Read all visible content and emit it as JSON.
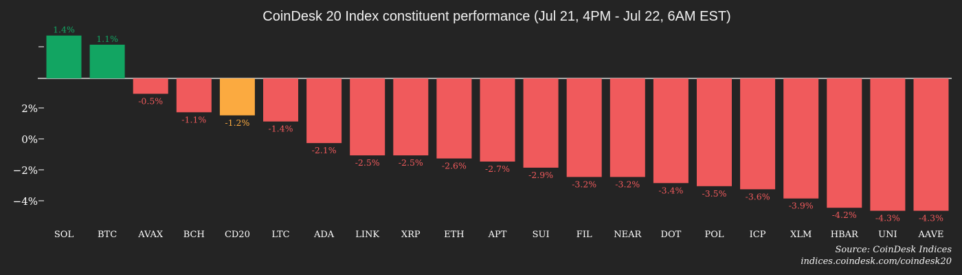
{
  "colors": {
    "background": "#242424",
    "positive": "#12a562",
    "negative": "#f05a5c",
    "index": "#fbaa40",
    "text": "#ffffff"
  },
  "source": {
    "line1": "Source: CoinDesk Indices",
    "line2": "indices.coindesk.com/coindesk20"
  },
  "chart_data": {
    "type": "bar",
    "title": "CoinDesk 20 Index constituent performance (Jul 21, 4PM - Jul 22, 6AM EST)",
    "xlabel": "",
    "ylabel": "",
    "categories": [
      "SOL",
      "BTC",
      "AVAX",
      "BCH",
      "CD20",
      "LTC",
      "ADA",
      "LINK",
      "XRP",
      "ETH",
      "APT",
      "SUI",
      "FIL",
      "NEAR",
      "DOT",
      "POL",
      "ICP",
      "XLM",
      "HBAR",
      "UNI",
      "AAVE"
    ],
    "values": [
      1.4,
      1.1,
      -0.5,
      -1.1,
      -1.2,
      -1.4,
      -2.1,
      -2.5,
      -2.5,
      -2.6,
      -2.7,
      -2.9,
      -3.2,
      -3.2,
      -3.4,
      -3.5,
      -3.6,
      -3.9,
      -4.2,
      -4.3,
      -4.3
    ],
    "labels": [
      "1.4%",
      "1.1%",
      "-0.5%",
      "-1.1%",
      "-1.2%",
      "-1.4%",
      "-2.1%",
      "-2.5%",
      "-2.5%",
      "-2.6%",
      "-2.7%",
      "-2.9%",
      "-3.2%",
      "-3.2%",
      "-3.4%",
      "-3.5%",
      "-3.6%",
      "-3.9%",
      "-4.2%",
      "-4.3%",
      "-4.3%"
    ],
    "highlight": "CD20",
    "yticks": [
      {
        "value": -4,
        "label": "−4%"
      },
      {
        "value": -2,
        "label": "−2%"
      },
      {
        "value": 0,
        "label": "0%"
      },
      {
        "value": 2,
        "label": "2%"
      }
    ],
    "ylim": [
      -5,
      2.7
    ],
    "grid": false,
    "legend": "none"
  }
}
